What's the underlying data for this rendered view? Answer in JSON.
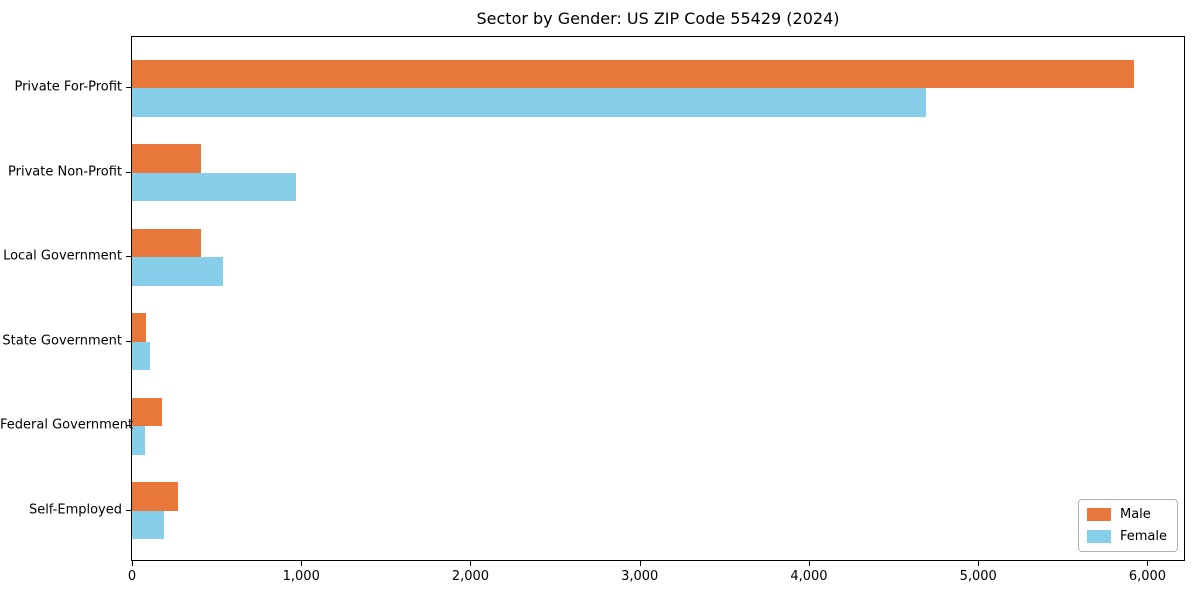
{
  "chart_data": {
    "type": "bar",
    "orientation": "horizontal",
    "title": "Sector by Gender: US ZIP Code 55429 (2024)",
    "categories": [
      "Private For-Profit",
      "Private Non-Profit",
      "Local Government",
      "State Government",
      "Federal Government",
      "Self-Employed"
    ],
    "series": [
      {
        "name": "Male",
        "color": "#e8773c",
        "values": [
          5920,
          410,
          410,
          80,
          175,
          270
        ]
      },
      {
        "name": "Female",
        "color": "#87ceeb",
        "values": [
          4690,
          970,
          535,
          105,
          75,
          190
        ]
      }
    ],
    "xlabel": "",
    "ylabel": "",
    "xlim": [
      0,
      6216
    ],
    "xticks": [
      0,
      1000,
      2000,
      3000,
      4000,
      5000,
      6000
    ],
    "xtick_labels": [
      "0",
      "1,000",
      "2,000",
      "3,000",
      "4,000",
      "5,000",
      "6,000"
    ],
    "grid": false,
    "legend_position": "lower right",
    "plot_border_color": "#000000",
    "background_color": "#ffffff",
    "text_color": "#000000"
  }
}
